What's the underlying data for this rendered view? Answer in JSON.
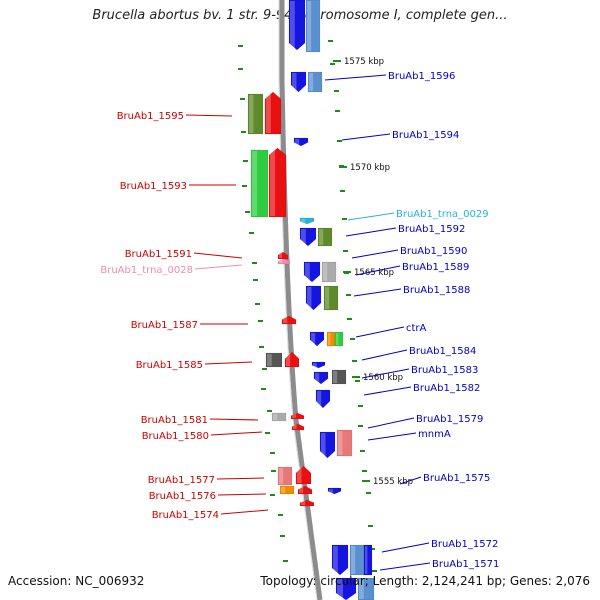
{
  "title": "Brucella abortus bv. 1 str. 9-941 chromosome I, complete gen...",
  "accession": "Accession: NC_006932",
  "summary": "Topology: circular; Length: 2,124,241 bp; Genes: 2,076",
  "colors": {
    "backbone": "#8c8c8c",
    "tick": "#1e8a1e",
    "left_label": "#cc0000",
    "right_label": "#0000cc",
    "trna_right": "#22b5d9",
    "trna_left": "#f08cb4",
    "blue_gene": "#1515e0",
    "steelblue_gene": "#5a8fd0",
    "olive_gene": "#5f8a2a",
    "red_gene": "#e81010",
    "green_gene": "#2ecc40",
    "gray_gene": "#aaaaaa",
    "darkgray_gene": "#555555",
    "salmon_gene": "#e87878",
    "orange_gene": "#f08c00"
  },
  "kbp_markers": [
    "1575 kbp",
    "1570 kbp",
    "1565 kbp",
    "1560 kbp",
    "1555 kbp"
  ],
  "left_labels": [
    {
      "text": "BruAb1_1595",
      "kind": "gene"
    },
    {
      "text": "BruAb1_1593",
      "kind": "gene"
    },
    {
      "text": "BruAb1_1591",
      "kind": "gene"
    },
    {
      "text": "BruAb1_trna_0028",
      "kind": "trna"
    },
    {
      "text": "BruAb1_1587",
      "kind": "gene"
    },
    {
      "text": "BruAb1_1585",
      "kind": "gene"
    },
    {
      "text": "BruAb1_1581",
      "kind": "gene"
    },
    {
      "text": "BruAb1_1580",
      "kind": "gene"
    },
    {
      "text": "BruAb1_1577",
      "kind": "gene"
    },
    {
      "text": "BruAb1_1576",
      "kind": "gene"
    },
    {
      "text": "BruAb1_1574",
      "kind": "gene"
    }
  ],
  "right_labels": [
    {
      "text": "BruAb1_1596",
      "kind": "gene"
    },
    {
      "text": "BruAb1_1594",
      "kind": "gene"
    },
    {
      "text": "BruAb1_trna_0029",
      "kind": "trna"
    },
    {
      "text": "BruAb1_1592",
      "kind": "gene"
    },
    {
      "text": "BruAb1_1590",
      "kind": "gene"
    },
    {
      "text": "BruAb1_1589",
      "kind": "gene"
    },
    {
      "text": "BruAb1_1588",
      "kind": "gene"
    },
    {
      "text": "ctrA",
      "kind": "gene"
    },
    {
      "text": "BruAb1_1584",
      "kind": "gene"
    },
    {
      "text": "BruAb1_1583",
      "kind": "gene"
    },
    {
      "text": "BruAb1_1582",
      "kind": "gene"
    },
    {
      "text": "BruAb1_1579",
      "kind": "gene"
    },
    {
      "text": "mnmA",
      "kind": "gene"
    },
    {
      "text": "BruAb1_1575",
      "kind": "gene"
    },
    {
      "text": "BruAb1_1572",
      "kind": "gene"
    },
    {
      "text": "BruAb1_1571",
      "kind": "gene"
    }
  ]
}
